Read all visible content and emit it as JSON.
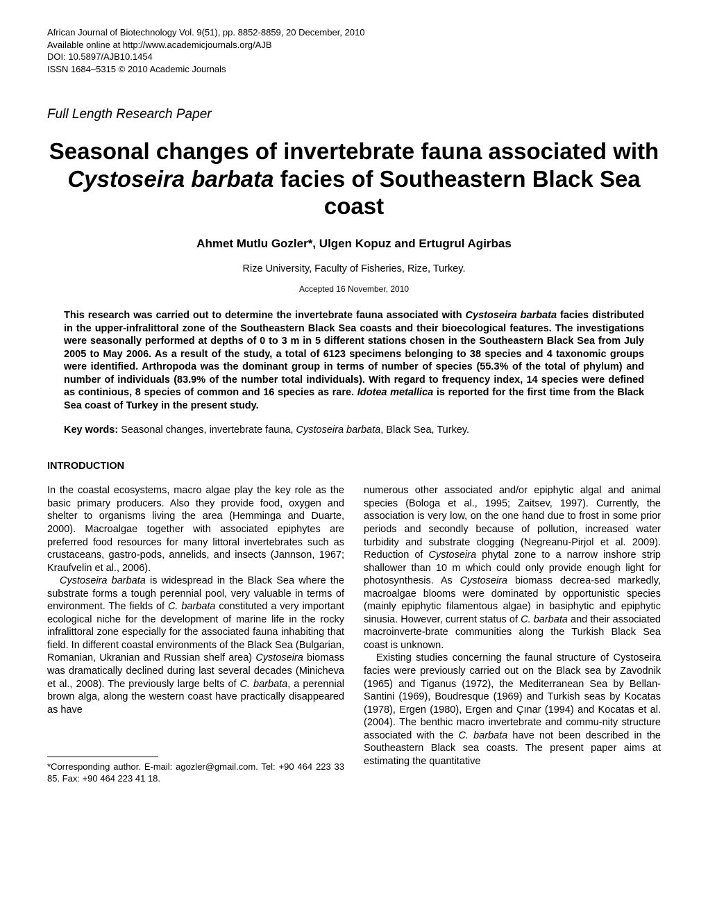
{
  "journal": {
    "line1": "African Journal of Biotechnology Vol. 9(51), pp. 8852-8859, 20 December, 2010",
    "line2": "Available online at http://www.academicjournals.org/AJB",
    "line3": "DOI: 10.5897/AJB10.1454",
    "line4": "ISSN 1684–5315 © 2010 Academic Journals"
  },
  "paperType": "Full Length Research Paper",
  "title": {
    "part1": "Seasonal changes of invertebrate fauna associated with ",
    "species": "Cystoseira barbata",
    "part2": " facies of Southeastern Black Sea coast"
  },
  "authors": "Ahmet Mutlu Gozler*, Ulgen Kopuz and Ertugrul Agirbas",
  "affiliation": "Rize University, Faculty of Fisheries, Rize, Turkey.",
  "accepted": "Accepted 16 November, 2010",
  "abstract": {
    "part1": "This research was carried out to determine the invertebrate fauna associated with ",
    "species1": "Cystoseira barbata",
    "part2": " facies distributed in the upper-infralittoral zone of the Southeastern Black Sea coasts and their bioecological features. The investigations were seasonally performed at depths of 0 to 3 m in 5 different stations chosen in the Southeastern Black Sea from July 2005 to May 2006. As a result of the study, a total of 6123 specimens belonging to 38 species and 4 taxonomic groups were identified. Arthropoda was the dominant group in terms of number of species (55.3% of the total of phylum) and number of individuals (83.9% of the number total individuals). With regard to frequency index, 14 species were defined as continious, 8 species of common and 16 species as rare. ",
    "species2": "Idotea metallica",
    "part3": " is reported for the first time from the Black Sea coast of Turkey in the present study."
  },
  "keywords": {
    "label": "Key words:",
    "part1": " Seasonal changes, invertebrate fauna, ",
    "species": "Cystoseira barbata",
    "part2": ", Black Sea, Turkey."
  },
  "sectionHeading": "INTRODUCTION",
  "leftColumn": {
    "para1": "In the coastal ecosystems, macro algae play the key role as the basic primary producers. Also they provide food, oxygen and shelter to organisms living the area (Hemminga and Duarte, 2000). Macroalgae together with associated epiphytes are preferred food resources for many littoral invertebrates such as crustaceans, gastro-pods, annelids, and insects (Jannson, 1967; Kraufvelin et al., 2006).",
    "para2_species1": "Cystoseira barbata",
    "para2_part1": " is widespread in the Black Sea where the substrate forms a tough perennial pool, very valuable in terms of environment. The fields of ",
    "para2_species2": "C. barbata",
    "para2_part2": " constituted a very important ecological niche for the development of marine life in the rocky infralittoral zone especially for the associated fauna inhabiting that field. In different coastal environments of the Black Sea (Bulgarian, Romanian, Ukranian and Russian shelf area) ",
    "para2_species3": "Cystoseira",
    "para2_part3": " biomass was dramatically declined during last several decades (Minicheva et al., 2008). The previously large belts of ",
    "para2_species4": "C. barbata",
    "para2_part4": ", a perennial brown alga, along the western coast have practically disappeared as have"
  },
  "rightColumn": {
    "para1_part1": "numerous other associated and/or epiphytic algal and animal species (Bologa et al., 1995; Zaitsev, 1997). Currently, the association is very low, on the one hand due to frost in some prior periods and secondly because of pollution, increased water turbidity and substrate clogging (Negreanu-Pirjol et al. 2009). Reduction of ",
    "para1_species1": "Cystoseira",
    "para1_part2": " phytal zone to a narrow inshore strip shallower than 10 m which could only provide enough light for photosynthesis. As ",
    "para1_species2": "Cystoseira",
    "para1_part3": " biomass decrea-sed markedly, macroalgae blooms were dominated by opportunistic species (mainly epiphytic filamentous algae) in basiphytic and epiphytic sinusia. However, current status of ",
    "para1_species3": "C. barbata",
    "para1_part4": " and their associated macroinverte-brate communities along the Turkish Black Sea coast is unknown.",
    "para2_part1": "Existing studies concerning the faunal structure of Cystoseira facies were previously carried out on the Black sea by Zavodnik (1965) and Tiganus (1972), the Mediterranean Sea by Bellan-Santini (1969), Boudresque (1969) and Turkish seas by Kocatas (1978), Ergen (1980), Ergen and Çınar (1994) and Kocatas et al. (2004). The benthic macro invertebrate and commu-nity structure associated with the ",
    "para2_species1": "C. barbata",
    "para2_part2": " have not been described in the Southeastern Black sea coasts. The present paper  aims at estimating the quantitative"
  },
  "footnote": "*Corresponding author. E-mail: agozler@gmail.com. Tel: +90 464 223 33 85. Fax: +90 464 223 41 18."
}
